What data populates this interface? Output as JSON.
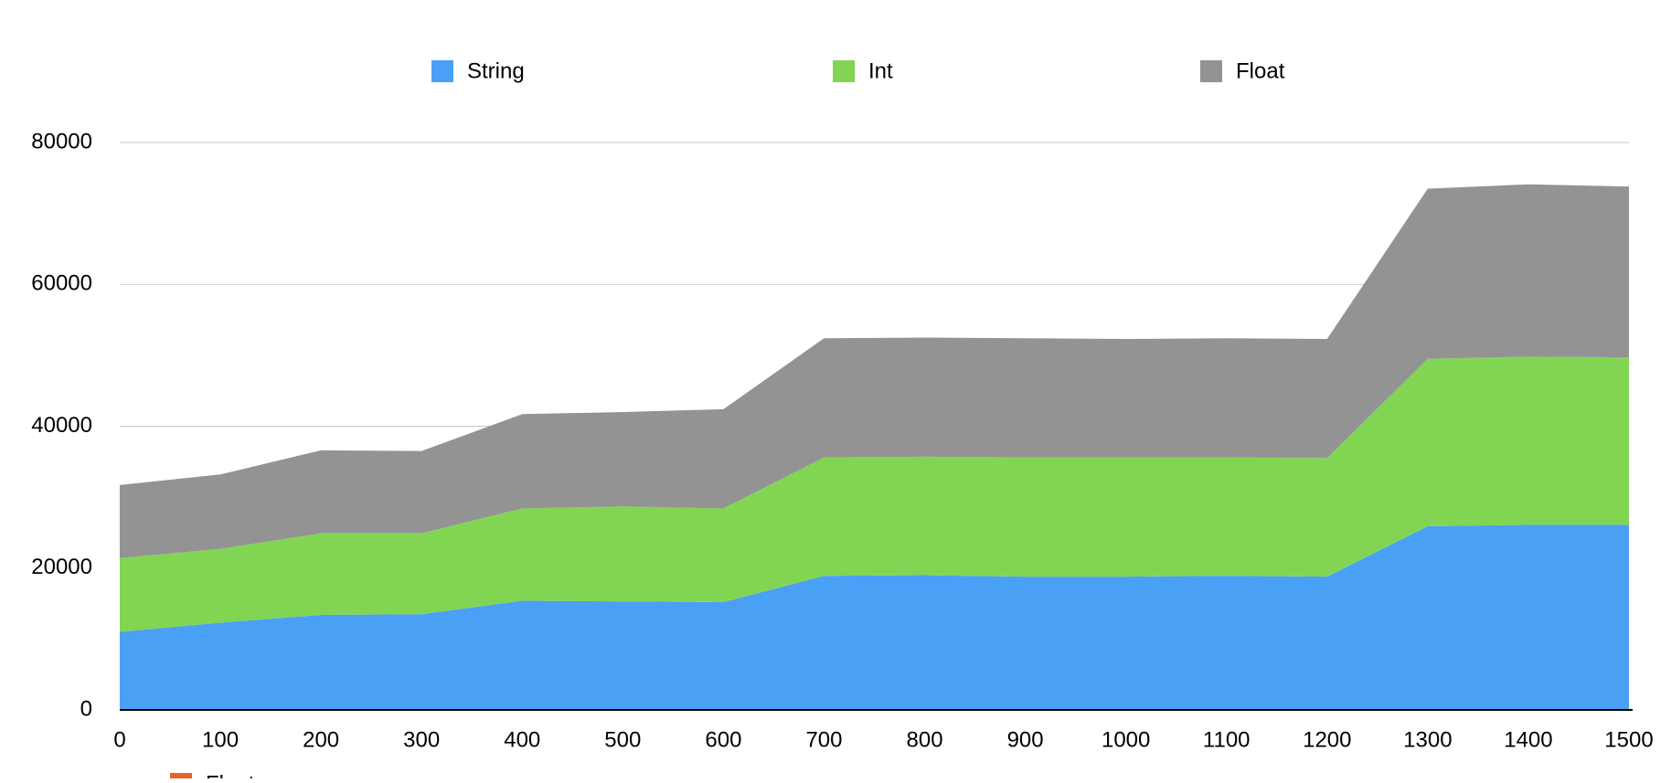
{
  "chart_data": {
    "type": "area",
    "stacked": true,
    "title": "",
    "xlabel": "",
    "ylabel": "",
    "x": [
      0,
      100,
      200,
      300,
      400,
      500,
      600,
      700,
      800,
      900,
      1000,
      1100,
      1200,
      1300,
      1400,
      1500
    ],
    "x_ticks": [
      "0",
      "100",
      "200",
      "300",
      "400",
      "500",
      "600",
      "700",
      "800",
      "900",
      "1000",
      "1100",
      "1200",
      "1300",
      "1400",
      "1500"
    ],
    "xlim": [
      0,
      1500
    ],
    "ylim": [
      0,
      80000
    ],
    "y_ticks": [
      "0",
      "20000",
      "40000",
      "60000",
      "80000"
    ],
    "grid": "horizontal",
    "legend_position": "top",
    "series": [
      {
        "name": "String",
        "color": "#4aa0f5",
        "values": [
          11000,
          12300,
          13400,
          13500,
          15400,
          15300,
          15200,
          18900,
          19000,
          18800,
          18800,
          18900,
          18800,
          25900,
          26100,
          26100
        ]
      },
      {
        "name": "Int",
        "color": "#82d553",
        "values": [
          10400,
          10400,
          11500,
          11400,
          13000,
          13400,
          13200,
          16700,
          16700,
          16800,
          16800,
          16700,
          16700,
          23600,
          23700,
          23600
        ]
      },
      {
        "name": "Float",
        "color": "#939393",
        "values": [
          10300,
          10500,
          11700,
          11600,
          13300,
          13300,
          14000,
          16800,
          16800,
          16800,
          16700,
          16800,
          16800,
          24000,
          24300,
          24100
        ]
      }
    ],
    "extra_legend": {
      "name": "Float",
      "color": "#e8632c"
    }
  }
}
